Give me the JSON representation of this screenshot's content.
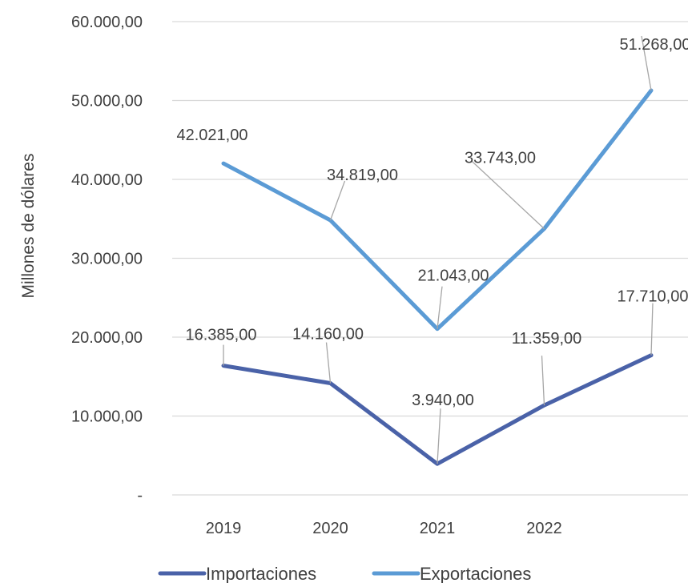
{
  "chart_data": {
    "type": "line",
    "title": "",
    "xlabel": "",
    "ylabel": "Millones de dólares",
    "ylim": [
      0,
      60000
    ],
    "y_ticks": [
      {
        "value": 0,
        "label": "-"
      },
      {
        "value": 10000,
        "label": "10.000,00"
      },
      {
        "value": 20000,
        "label": "20.000,00"
      },
      {
        "value": 30000,
        "label": "30.000,00"
      },
      {
        "value": 40000,
        "label": "40.000,00"
      },
      {
        "value": 50000,
        "label": "50.000,00"
      },
      {
        "value": 60000,
        "label": "60.000,00"
      }
    ],
    "categories": [
      "2019",
      "2020",
      "2021",
      "2022",
      ""
    ],
    "grid": true,
    "legend_position": "bottom",
    "series": [
      {
        "name": "Importaciones",
        "color": "#4a62a8",
        "values": [
          16385,
          14160,
          3940,
          11359,
          17710
        ],
        "labels": [
          "16.385,00",
          "14.160,00",
          "3.940,00",
          "11.359,00",
          "17.710,00"
        ]
      },
      {
        "name": "Exportaciones",
        "color": "#5b9bd5",
        "values": [
          42021,
          34819,
          21043,
          33743,
          51268
        ],
        "labels": [
          "42.021,00",
          "34.819,00",
          "21.043,00",
          "33.743,00",
          "51.268,00"
        ]
      }
    ]
  }
}
